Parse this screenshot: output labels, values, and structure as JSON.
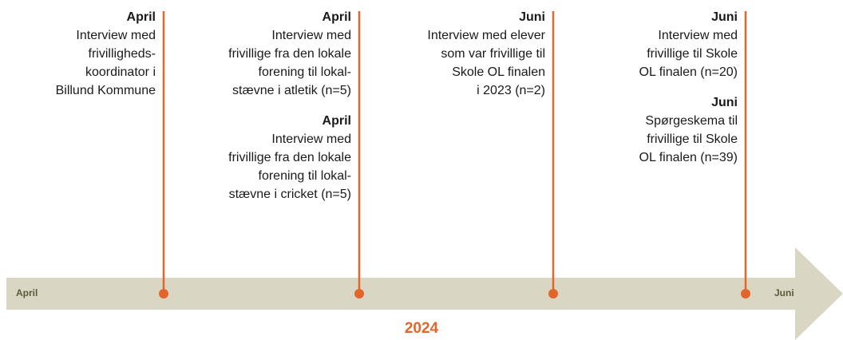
{
  "timeline": {
    "start_label": "April",
    "end_label": "Juni",
    "year": "2024",
    "columns": [
      {
        "events": [
          {
            "month": "April",
            "lines": [
              "Interview med",
              "frivilligheds-",
              "koordinator i",
              "Billund Kommune"
            ]
          }
        ]
      },
      {
        "events": [
          {
            "month": "April",
            "lines": [
              "Interview med",
              "frivillige fra den lokale",
              "forening til lokal-",
              "stævne i atletik (n=5)"
            ]
          },
          {
            "month": "April",
            "lines": [
              "Interview med",
              "frivillige fra den lokale",
              "forening til lokal-",
              "stævne i cricket (n=5)"
            ]
          }
        ]
      },
      {
        "events": [
          {
            "month": "Juni",
            "lines": [
              "Interview med elever",
              "som var frivillige til",
              "Skole OL finalen",
              "i 2023 (n=2)"
            ]
          }
        ]
      },
      {
        "events": [
          {
            "month": "Juni",
            "lines": [
              "Interview med",
              "frivillige til Skole",
              "OL finalen (n=20)"
            ]
          },
          {
            "month": "Juni",
            "lines": [
              "Spørgeskema til",
              "frivillige til Skole",
              "OL finalen (n=39)"
            ]
          }
        ]
      }
    ]
  }
}
